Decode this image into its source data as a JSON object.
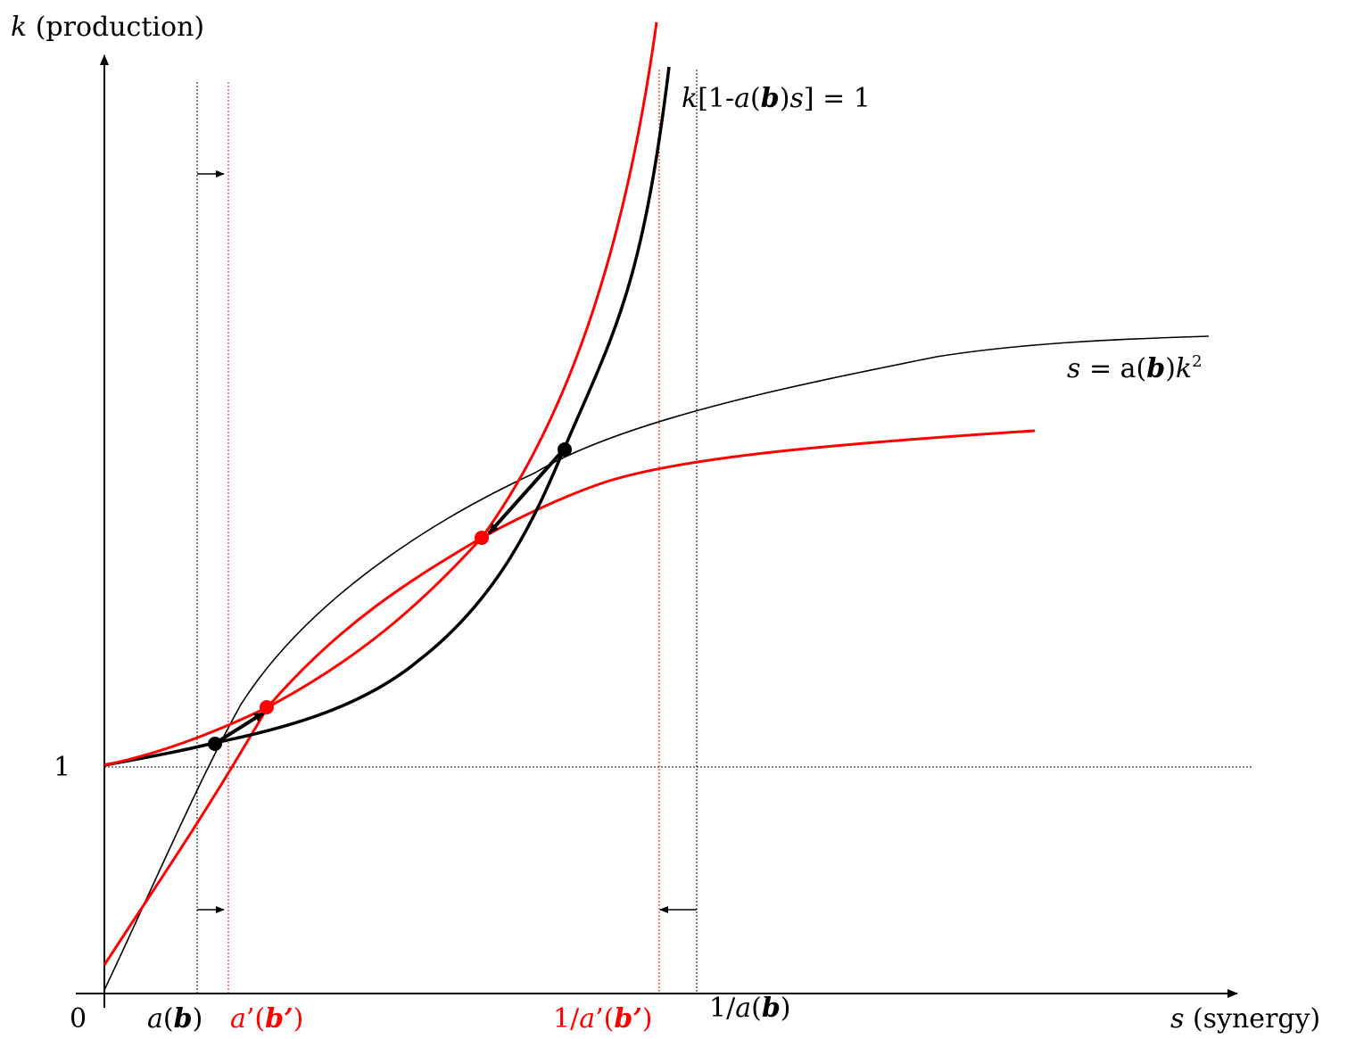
{
  "axes": {
    "y_label_var": "k",
    "y_label_text": " (production)",
    "x_label_var": "s",
    "x_label_text": " (synergy)",
    "origin_label": "0",
    "k_one_label": "1"
  },
  "curve_labels": {
    "hyperbola": {
      "k": "k",
      "part1": "[1-",
      "a": "a",
      "paren_open": "(",
      "b": "b",
      "paren_close": ")",
      "s": "s",
      "part2": "] = 1"
    },
    "saturation": {
      "s": "s",
      "part1": " = a(",
      "b": "b",
      "part2": ")",
      "k": "k",
      "exp": "2"
    }
  },
  "x_marks": {
    "a_b": {
      "a": "a",
      "open": "(",
      "b": "b",
      "close": ")"
    },
    "a_prime_b_prime": {
      "a": "a",
      "rest_open": "’(",
      "b": "b’",
      "close": ")"
    },
    "inv_a_prime": {
      "one": "1/",
      "a": "a",
      "rest_open": "’(",
      "b": "b’",
      "close": ")"
    },
    "inv_a": {
      "one": "1/",
      "a": "a",
      "open": "(",
      "b": "b",
      "close": ")"
    }
  },
  "colors": {
    "original": "#000000",
    "shifted": "#ff0000"
  }
}
